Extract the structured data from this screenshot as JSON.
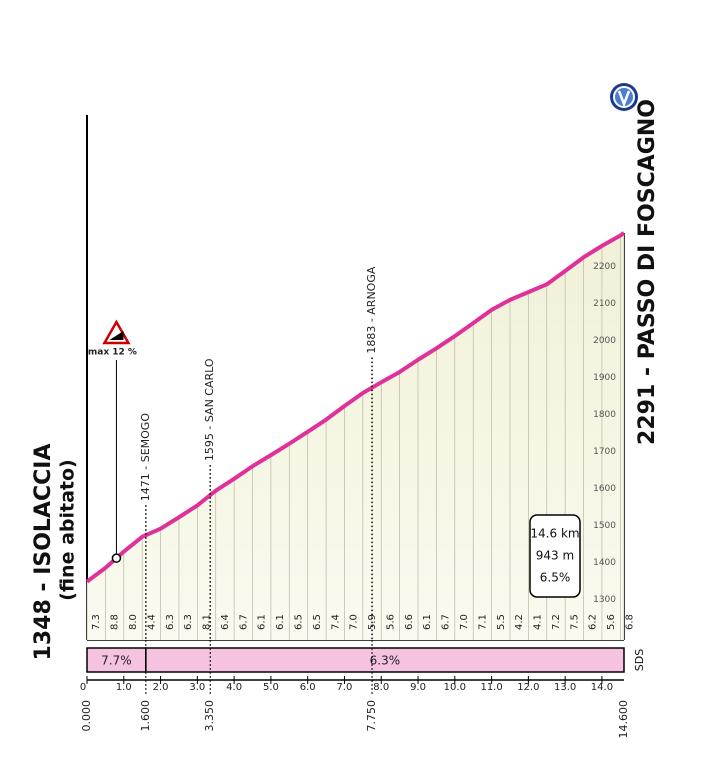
{
  "chart_data": {
    "type": "area",
    "title_left": "1348 - ISOLACCIA",
    "subtitle_left": "(fine abitato)",
    "title_right": "2291 - PASSO DI FOSCAGNO",
    "x": [
      0,
      0.5,
      1,
      1.5,
      2,
      2.5,
      3,
      3.5,
      4,
      4.5,
      5,
      5.5,
      6,
      6.5,
      7,
      7.5,
      8,
      8.5,
      9,
      9.5,
      10,
      10.5,
      11,
      11.5,
      12,
      12.5,
      13,
      13.5,
      14,
      14.5,
      14.6
    ],
    "values": [
      1348,
      1385,
      1429,
      1469,
      1491,
      1522,
      1554,
      1594,
      1626,
      1660,
      1690,
      1721,
      1753,
      1786,
      1823,
      1858,
      1887,
      1915,
      1948,
      1979,
      2012,
      2047,
      2083,
      2110,
      2131,
      2152,
      2188,
      2225,
      2256,
      2284,
      2291
    ],
    "color": "#e0309a",
    "xlim": [
      0,
      14.6
    ],
    "ylim": [
      1190,
      2610
    ],
    "yticks": [
      1300,
      1400,
      1500,
      1600,
      1700,
      1800,
      1900,
      2000,
      2100,
      2200
    ],
    "xticks": [
      0,
      {
        "value": 1,
        "label": "1.0"
      },
      {
        "value": 2,
        "label": "2.0"
      },
      {
        "value": 3,
        "label": "3.0"
      },
      {
        "value": 4,
        "label": "4.0"
      },
      {
        "value": 5,
        "label": "5.0"
      },
      {
        "value": 6,
        "label": "6.0"
      },
      {
        "value": 7,
        "label": "7.0"
      },
      {
        "value": 8,
        "label": "8.0"
      },
      {
        "value": 9,
        "label": "9.0"
      },
      {
        "value": 10,
        "label": "10.0"
      },
      {
        "value": 11,
        "label": "11.0"
      },
      {
        "value": 12,
        "label": "12.0"
      },
      {
        "value": 13,
        "label": "13.0"
      },
      {
        "value": 14,
        "label": "14.0"
      }
    ],
    "km_markers": [
      {
        "value": 0,
        "label": "0.000"
      },
      {
        "value": 1.6,
        "label": "1.600"
      },
      {
        "value": 3.35,
        "label": "3.350"
      },
      {
        "value": 7.75,
        "label": "7.750"
      },
      {
        "value": 14.6,
        "label": "14.600"
      }
    ],
    "segment_gradients": [
      7.3,
      8.8,
      {
        "value": 8,
        "label": "8.0"
      },
      4.4,
      6.3,
      6.3,
      8.1,
      6.4,
      6.7,
      6.1,
      6.1,
      6.5,
      6.5,
      7.4,
      {
        "value": 7,
        "label": "7.0"
      },
      5.9,
      5.6,
      6.6,
      6.1,
      6.7,
      {
        "value": 7,
        "label": "7.0"
      },
      7.1,
      5.5,
      4.2,
      4.1,
      7.2,
      7.5,
      6.2,
      5.6,
      6.8
    ],
    "sections": [
      {
        "from": 0,
        "to": 1.6,
        "value": 7.7,
        "label": "7.7%"
      },
      {
        "from": 1.6,
        "to": 14.6,
        "value": 6.3,
        "label": "6.3%"
      }
    ],
    "waypoints": [
      {
        "x": 1.6,
        "label": "1471 - SEMOGO"
      },
      {
        "x": 3.35,
        "label": "1595 - SAN CARLO"
      },
      {
        "x": 7.75,
        "label": "1883 - ARNOGA"
      }
    ],
    "max_gradient": {
      "x": 0.8,
      "label": "max 12 %"
    },
    "summary": {
      "distance": "14.6 km",
      "gain": "943 m",
      "gradient": "6.5%"
    },
    "credit": "SDS"
  }
}
